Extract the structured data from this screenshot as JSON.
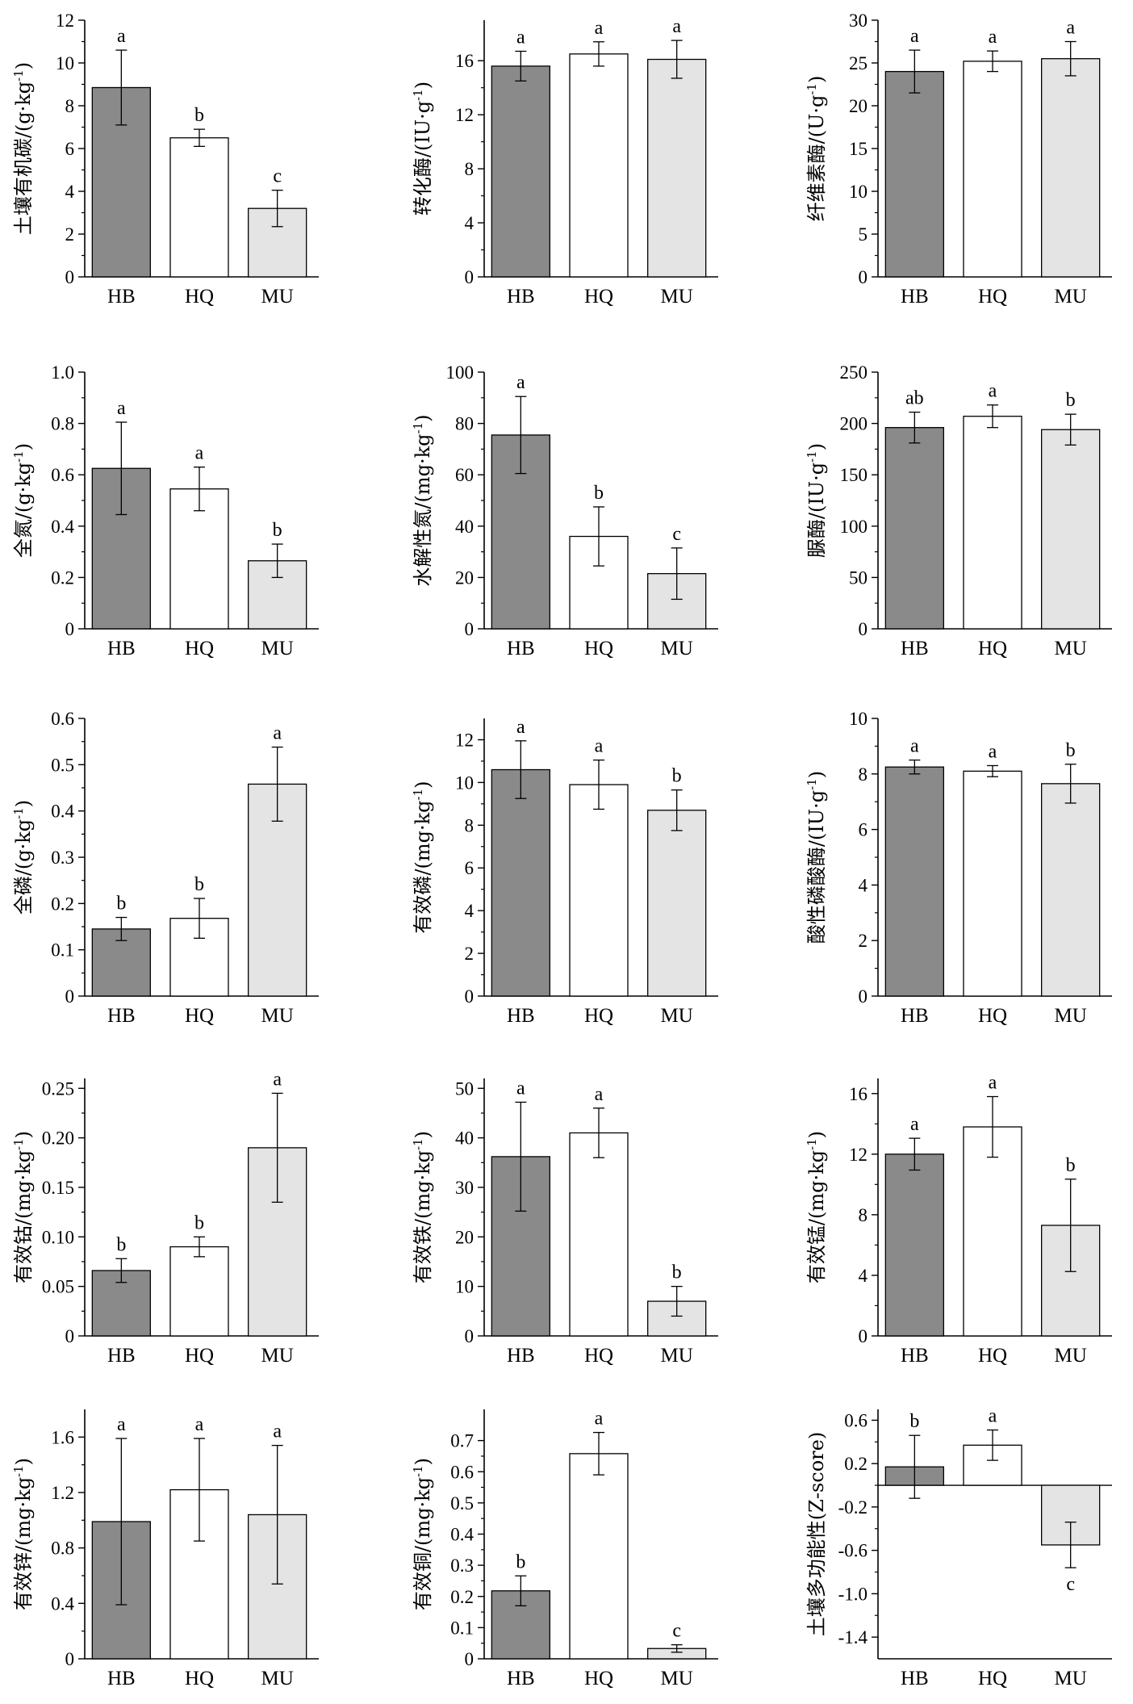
{
  "colors": {
    "HB": "#8a8a8a",
    "HQ": "#ffffff",
    "MU": "#e4e4e4",
    "axis": "#000000"
  },
  "chart_data": [
    {
      "type": "bar",
      "ylabel": "土壤有机碳/(g·kg",
      "ylabel_sup": "-1",
      "ylabel_end": ")",
      "categories": [
        "HB",
        "HQ",
        "MU"
      ],
      "values": [
        8.85,
        6.5,
        3.2
      ],
      "errors": [
        1.75,
        0.4,
        0.85
      ],
      "letters": [
        "a",
        "b",
        "c"
      ],
      "ylim": [
        0,
        12
      ],
      "ticks": [
        0,
        2,
        4,
        6,
        8,
        10,
        12
      ],
      "minor": true,
      "zero_line": false
    },
    {
      "type": "bar",
      "ylabel": "转化酶/(IU·g",
      "ylabel_sup": "-1",
      "ylabel_end": ")",
      "categories": [
        "HB",
        "HQ",
        "MU"
      ],
      "values": [
        15.6,
        16.5,
        16.1
      ],
      "errors": [
        1.1,
        0.9,
        1.4
      ],
      "letters": [
        "a",
        "a",
        "a"
      ],
      "ylim": [
        0,
        19
      ],
      "ticks": [
        0,
        4,
        8,
        12,
        16
      ],
      "minor": true,
      "zero_line": false
    },
    {
      "type": "bar",
      "ylabel": "纤维素酶/(U·g",
      "ylabel_sup": "-1",
      "ylabel_end": ")",
      "categories": [
        "HB",
        "HQ",
        "MU"
      ],
      "values": [
        24.0,
        25.2,
        25.5
      ],
      "errors": [
        2.5,
        1.2,
        2.0
      ],
      "letters": [
        "a",
        "a",
        "a"
      ],
      "ylim": [
        0,
        30
      ],
      "ticks": [
        0,
        5,
        10,
        15,
        20,
        25,
        30
      ],
      "minor": true,
      "zero_line": false
    },
    {
      "type": "bar",
      "ylabel": "全氮/(g·kg",
      "ylabel_sup": "-1",
      "ylabel_end": ")",
      "categories": [
        "HB",
        "HQ",
        "MU"
      ],
      "values": [
        0.625,
        0.545,
        0.265
      ],
      "errors": [
        0.18,
        0.085,
        0.065
      ],
      "letters": [
        "a",
        "a",
        "b"
      ],
      "ylim": [
        0,
        1.0
      ],
      "ticks": [
        0,
        0.2,
        0.4,
        0.6,
        0.8,
        1.0
      ],
      "tick_labels": [
        "0",
        "0.2",
        "0.4",
        "0.6",
        "0.8",
        "1.0"
      ],
      "minor": true,
      "zero_line": false
    },
    {
      "type": "bar",
      "ylabel": "水解性氮/(mg·kg",
      "ylabel_sup": "-1",
      "ylabel_end": ")",
      "categories": [
        "HB",
        "HQ",
        "MU"
      ],
      "values": [
        75.5,
        36.0,
        21.5
      ],
      "errors": [
        15.0,
        11.5,
        10.0
      ],
      "letters": [
        "a",
        "b",
        "c"
      ],
      "ylim": [
        0,
        100
      ],
      "ticks": [
        0,
        20,
        40,
        60,
        80,
        100
      ],
      "minor": true,
      "zero_line": false
    },
    {
      "type": "bar",
      "ylabel": "脲酶/(IU·g",
      "ylabel_sup": "-1",
      "ylabel_end": ")",
      "categories": [
        "HB",
        "HQ",
        "MU"
      ],
      "values": [
        196,
        207,
        194
      ],
      "errors": [
        15,
        11,
        15
      ],
      "letters": [
        "ab",
        "a",
        "b"
      ],
      "ylim": [
        0,
        250
      ],
      "ticks": [
        0,
        50,
        100,
        150,
        200,
        250
      ],
      "minor": true,
      "zero_line": false
    },
    {
      "type": "bar",
      "ylabel": "全磷/(g·kg",
      "ylabel_sup": "-1",
      "ylabel_end": ")",
      "categories": [
        "HB",
        "HQ",
        "MU"
      ],
      "values": [
        0.145,
        0.168,
        0.458
      ],
      "errors": [
        0.025,
        0.043,
        0.08
      ],
      "letters": [
        "b",
        "b",
        "a"
      ],
      "ylim": [
        0,
        0.6
      ],
      "ticks": [
        0,
        0.1,
        0.2,
        0.3,
        0.4,
        0.5,
        0.6
      ],
      "minor": true,
      "zero_line": false
    },
    {
      "type": "bar",
      "ylabel": "有效磷/(mg·kg",
      "ylabel_sup": "-1",
      "ylabel_end": ")",
      "categories": [
        "HB",
        "HQ",
        "MU"
      ],
      "values": [
        10.6,
        9.9,
        8.7
      ],
      "errors": [
        1.35,
        1.15,
        0.95
      ],
      "letters": [
        "a",
        "a",
        "b"
      ],
      "ylim": [
        0,
        13
      ],
      "ticks": [
        0,
        2,
        4,
        6,
        8,
        10,
        12
      ],
      "minor": true,
      "zero_line": false
    },
    {
      "type": "bar",
      "ylabel": "酸性磷酸酶/(IU·g",
      "ylabel_sup": "-1",
      "ylabel_end": ")",
      "categories": [
        "HB",
        "HQ",
        "MU"
      ],
      "values": [
        8.25,
        8.1,
        7.65
      ],
      "errors": [
        0.25,
        0.2,
        0.7
      ],
      "letters": [
        "a",
        "a",
        "b"
      ],
      "ylim": [
        0,
        10
      ],
      "ticks": [
        0,
        2,
        4,
        6,
        8,
        10
      ],
      "minor": true,
      "zero_line": false
    },
    {
      "type": "bar",
      "ylabel": "有效钴/(mg·kg",
      "ylabel_sup": "-1",
      "ylabel_end": ")",
      "categories": [
        "HB",
        "HQ",
        "MU"
      ],
      "values": [
        0.066,
        0.09,
        0.19
      ],
      "errors": [
        0.012,
        0.01,
        0.055
      ],
      "letters": [
        "b",
        "b",
        "a"
      ],
      "ylim": [
        0,
        0.26
      ],
      "ticks": [
        0,
        0.05,
        0.1,
        0.15,
        0.2,
        0.25
      ],
      "tick_labels": [
        "0",
        "0.05",
        "0.10",
        "0.15",
        "0.20",
        "0.25"
      ],
      "minor": true,
      "zero_line": false
    },
    {
      "type": "bar",
      "ylabel": "有效铁/(mg·kg",
      "ylabel_sup": "-1",
      "ylabel_end": ")",
      "categories": [
        "HB",
        "HQ",
        "MU"
      ],
      "values": [
        36.2,
        41.0,
        7.0
      ],
      "errors": [
        11.0,
        5.0,
        3.0
      ],
      "letters": [
        "a",
        "a",
        "b"
      ],
      "ylim": [
        0,
        52
      ],
      "ticks": [
        0,
        10,
        20,
        30,
        40,
        50
      ],
      "minor": true,
      "zero_line": false
    },
    {
      "type": "bar",
      "ylabel": "有效锰/(mg·kg",
      "ylabel_sup": "-1",
      "ylabel_end": ")",
      "categories": [
        "HB",
        "HQ",
        "MU"
      ],
      "values": [
        12.0,
        13.8,
        7.3
      ],
      "errors": [
        1.05,
        2.0,
        3.05
      ],
      "letters": [
        "a",
        "a",
        "b"
      ],
      "ylim": [
        0,
        17
      ],
      "ticks": [
        0,
        4,
        8,
        12,
        16
      ],
      "minor": true,
      "zero_line": false
    },
    {
      "type": "bar",
      "ylabel": "有效锌/(mg·kg",
      "ylabel_sup": "-1",
      "ylabel_end": ")",
      "categories": [
        "HB",
        "HQ",
        "MU"
      ],
      "values": [
        0.99,
        1.22,
        1.04
      ],
      "errors": [
        0.6,
        0.37,
        0.5
      ],
      "letters": [
        "a",
        "a",
        "a"
      ],
      "ylim": [
        0,
        1.8
      ],
      "ticks": [
        0,
        0.4,
        0.8,
        1.2,
        1.6
      ],
      "tick_labels": [
        "0",
        "0.4",
        "0.8",
        "1.2",
        "1.6"
      ],
      "minor": true,
      "zero_line": false
    },
    {
      "type": "bar",
      "ylabel": "有效铜/(mg·kg",
      "ylabel_sup": "-1",
      "ylabel_end": ")",
      "categories": [
        "HB",
        "HQ",
        "MU"
      ],
      "values": [
        0.218,
        0.658,
        0.033
      ],
      "errors": [
        0.048,
        0.068,
        0.012
      ],
      "letters": [
        "b",
        "a",
        "c"
      ],
      "ylim": [
        0,
        0.8
      ],
      "ticks": [
        0,
        0.1,
        0.2,
        0.3,
        0.4,
        0.5,
        0.6,
        0.7
      ],
      "minor": true,
      "zero_line": false
    },
    {
      "type": "bar",
      "ylabel": "土壤多功能性(Z-score)",
      "ylabel_sup": "",
      "ylabel_end": "",
      "categories": [
        "HB",
        "HQ",
        "MU"
      ],
      "values": [
        0.17,
        0.37,
        -0.55
      ],
      "errors": [
        0.29,
        0.14,
        0.21
      ],
      "letters": [
        "b",
        "a",
        "c"
      ],
      "ylim": [
        -1.6,
        0.7
      ],
      "ticks": [
        -1.4,
        -1.0,
        -0.6,
        -0.2,
        0.2,
        0.6
      ],
      "tick_labels": [
        "-1.4",
        "-1.0",
        "-0.6",
        "-0.2",
        "0.2",
        "0.6"
      ],
      "minor": true,
      "zero_line": true
    }
  ]
}
